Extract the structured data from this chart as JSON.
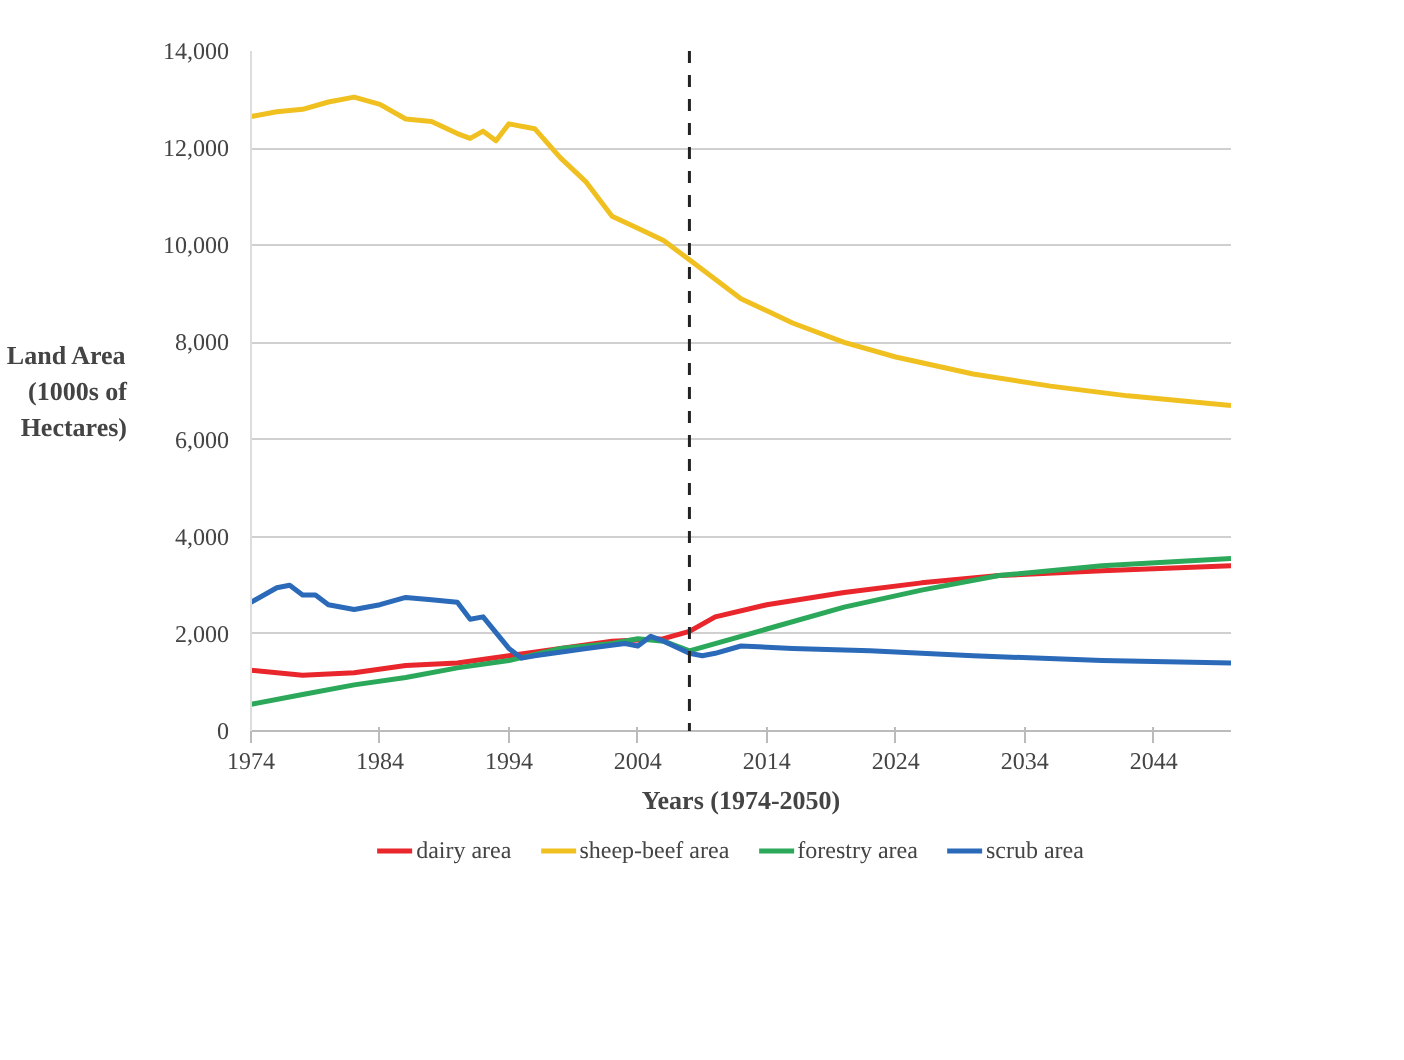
{
  "chart_data": {
    "type": "line",
    "xlabel": "Years (1974-2050)",
    "ylabel": "Land Area (1000s of Hectares)",
    "xlim": [
      1974,
      2050
    ],
    "xticks": [
      1974,
      1984,
      1994,
      2004,
      2014,
      2024,
      2034,
      2044
    ],
    "ylim": [
      0,
      14000
    ],
    "yticks": [
      0,
      {
        "value": 2000,
        "label": "2,000"
      },
      {
        "value": 4000,
        "label": "4,000"
      },
      {
        "value": 6000,
        "label": "6,000"
      },
      {
        "value": 8000,
        "label": "8,000"
      },
      {
        "value": 10000,
        "label": "10,000"
      },
      {
        "value": 12000,
        "label": "12,000"
      },
      {
        "value": 14000,
        "label": "14,000"
      }
    ],
    "grid": "y",
    "legend": "bottom",
    "line_style": "solid",
    "ref_lines": [
      {
        "axis": "x",
        "value": 2008,
        "label": null,
        "color": "#222222",
        "line_style": "dashed"
      }
    ],
    "series": [
      {
        "name": "dairy area",
        "color": "#e8262b",
        "x": [
          1974,
          1978,
          1982,
          1986,
          1990,
          1994,
          1998,
          2002,
          2006,
          2008,
          2010,
          2014,
          2020,
          2026,
          2032,
          2040,
          2050
        ],
        "values": [
          1250,
          1150,
          1200,
          1350,
          1400,
          1550,
          1700,
          1850,
          1900,
          2050,
          2350,
          2600,
          2850,
          3050,
          3200,
          3300,
          3400
        ]
      },
      {
        "name": "sheep-beef area",
        "color": "#f0c020",
        "x": [
          1974,
          1976,
          1978,
          1980,
          1982,
          1984,
          1986,
          1988,
          1990,
          1991,
          1992,
          1993,
          1994,
          1996,
          1998,
          2000,
          2002,
          2004,
          2006,
          2008,
          2010,
          2012,
          2014,
          2016,
          2020,
          2024,
          2030,
          2036,
          2042,
          2050
        ],
        "values": [
          12650,
          12750,
          12800,
          12950,
          13050,
          12900,
          12600,
          12550,
          12300,
          12200,
          12350,
          12150,
          12500,
          12400,
          11800,
          11300,
          10600,
          10350,
          10100,
          9700,
          9300,
          8900,
          8650,
          8400,
          8000,
          7700,
          7350,
          7100,
          6900,
          6700
        ]
      },
      {
        "name": "forestry area",
        "color": "#2ca85a",
        "x": [
          1974,
          1978,
          1982,
          1986,
          1990,
          1994,
          1998,
          2002,
          2004,
          2006,
          2008,
          2010,
          2014,
          2020,
          2026,
          2032,
          2040,
          2050
        ],
        "values": [
          550,
          750,
          950,
          1100,
          1300,
          1450,
          1700,
          1800,
          1900,
          1850,
          1650,
          1800,
          2100,
          2550,
          2900,
          3200,
          3400,
          3550
        ]
      },
      {
        "name": "scrub area",
        "color": "#2a6ab8",
        "x": [
          1974,
          1976,
          1977,
          1978,
          1979,
          1980,
          1982,
          1984,
          1986,
          1988,
          1990,
          1991,
          1992,
          1994,
          1995,
          1996,
          2000,
          2003,
          2004,
          2005,
          2006,
          2008,
          2009,
          2010,
          2012,
          2016,
          2022,
          2030,
          2040,
          2050
        ],
        "values": [
          2650,
          2950,
          3000,
          2800,
          2800,
          2600,
          2500,
          2600,
          2750,
          2700,
          2650,
          2300,
          2350,
          1700,
          1500,
          1550,
          1700,
          1800,
          1750,
          1950,
          1850,
          1600,
          1550,
          1600,
          1750,
          1700,
          1650,
          1550,
          1450,
          1400
        ]
      }
    ]
  }
}
